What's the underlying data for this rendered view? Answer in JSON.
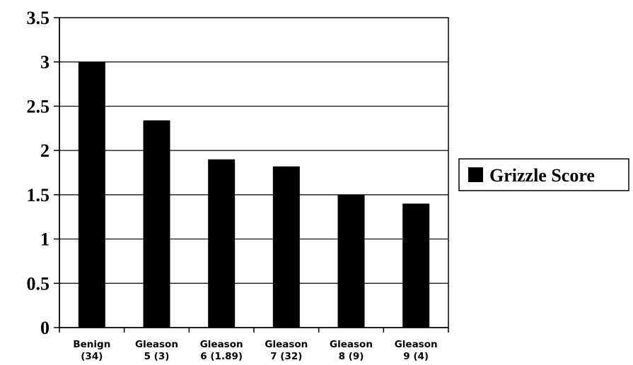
{
  "chart_data": {
    "type": "bar",
    "categories": [
      [
        "Benign",
        "(34)"
      ],
      [
        "Gleason",
        "5 (3)"
      ],
      [
        "Gleason",
        "6 (1.89)"
      ],
      [
        "Gleason",
        "7 (32)"
      ],
      [
        "Gleason",
        "8 (9)"
      ],
      [
        "Gleason",
        "9 (4)"
      ]
    ],
    "series": [
      {
        "name": "Grizzle Score",
        "values": [
          3.0,
          2.34,
          1.9,
          1.82,
          1.5,
          1.4
        ],
        "color": "#000000"
      }
    ],
    "ylim": [
      0,
      3.5
    ],
    "yticks": [
      "0",
      "0.5",
      "1",
      "1.5",
      "2",
      "2.5",
      "3",
      "3.5"
    ],
    "title": "",
    "xlabel": "",
    "ylabel": "",
    "grid": "horizontal",
    "legend": "right"
  }
}
